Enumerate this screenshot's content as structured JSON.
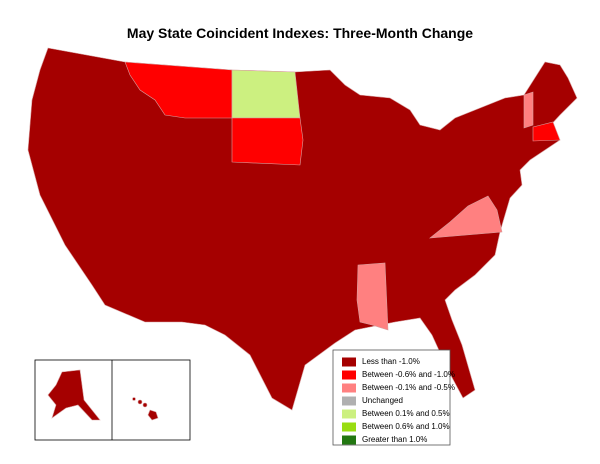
{
  "title": "May State Coincident Indexes: Three-Month Change",
  "legend": [
    {
      "label": "Less than -1.0%",
      "color": "#a50000"
    },
    {
      "label": "Between -0.6% and -1.0%",
      "color": "#ff0000"
    },
    {
      "label": "Between -0.1% and -0.5%",
      "color": "#ff8080"
    },
    {
      "label": "Unchanged",
      "color": "#b0b0b0"
    },
    {
      "label": "Between 0.1% and 0.5%",
      "color": "#ccf080"
    },
    {
      "label": "Between 0.6% and 1.0%",
      "color": "#99dd11"
    },
    {
      "label": "Greater than 1.0%",
      "color": "#227711"
    }
  ]
}
